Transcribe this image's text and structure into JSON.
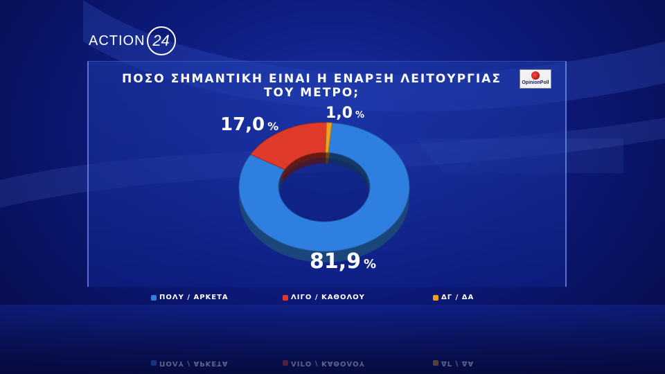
{
  "logo": {
    "text": "ACTION",
    "number": "24"
  },
  "poll_badge": "OpinionPoll",
  "colors": {
    "blue": "#2f7fe0",
    "red": "#e03a2a",
    "orange": "#f0a020"
  },
  "chart_data": {
    "type": "pie",
    "title": "ΠΟΣΟ ΣΗΜΑΝΤΙΚΗ ΕΙΝΑΙ Η ΕΝΑΡΞΗ ΛΕΙΤΟΥΡΓΙΑΣ ΤΟΥ ΜΕΤΡΟ;",
    "title_line1": "ΠΟΣΟ ΣΗΜΑΝΤΙΚΗ ΕΙΝΑΙ Η ΕΝΑΡΞΗ ΛΕΙΤΟΥΡΓΙΑΣ",
    "title_line2": "ΤΟΥ ΜΕΤΡΟ;",
    "donut": true,
    "legend_position": "bottom",
    "slices": [
      {
        "label": "ΠΟΛΥ / ΑΡΚΕΤΑ",
        "value": 81.9,
        "display": "81,9",
        "color": "#2f7fe0"
      },
      {
        "label": "ΛΙΓΟ / ΚΑΘΟΛΟΥ",
        "value": 17.0,
        "display": "17,0",
        "color": "#e03a2a"
      },
      {
        "label": "ΔΓ / ΔΑ",
        "value": 1.0,
        "display": "1,0",
        "color": "#f0a020"
      }
    ],
    "unit": "%"
  }
}
